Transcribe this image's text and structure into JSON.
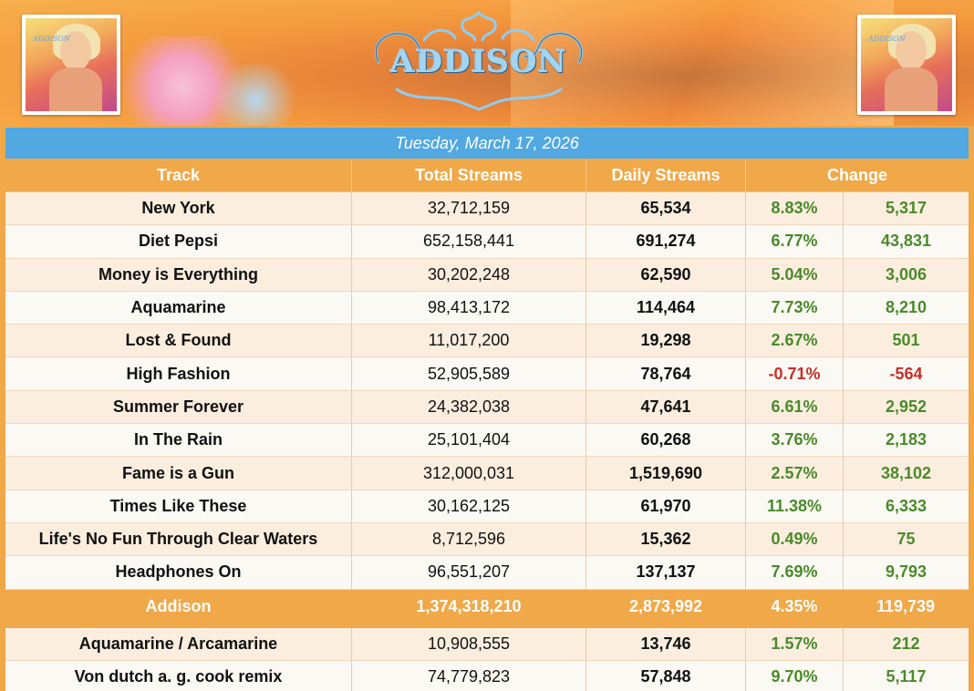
{
  "header": {
    "logo_text": "ADDISON",
    "cover_label": "ADDISON",
    "date": "Tuesday, March 17, 2026"
  },
  "table": {
    "columns": [
      "Track",
      "Total Streams",
      "Daily Streams",
      "Change"
    ],
    "rows": [
      {
        "track": "New York",
        "total": "32,712,159",
        "daily": "65,534",
        "pct": "8.83%",
        "change": "5,317"
      },
      {
        "track": "Diet Pepsi",
        "total": "652,158,441",
        "daily": "691,274",
        "pct": "6.77%",
        "change": "43,831"
      },
      {
        "track": "Money is Everything",
        "total": "30,202,248",
        "daily": "62,590",
        "pct": "5.04%",
        "change": "3,006"
      },
      {
        "track": "Aquamarine",
        "total": "98,413,172",
        "daily": "114,464",
        "pct": "7.73%",
        "change": "8,210"
      },
      {
        "track": "Lost & Found",
        "total": "11,017,200",
        "daily": "19,298",
        "pct": "2.67%",
        "change": "501"
      },
      {
        "track": "High Fashion",
        "total": "52,905,589",
        "daily": "78,764",
        "pct": "-0.71%",
        "change": "-564"
      },
      {
        "track": "Summer Forever",
        "total": "24,382,038",
        "daily": "47,641",
        "pct": "6.61%",
        "change": "2,952"
      },
      {
        "track": "In The Rain",
        "total": "25,101,404",
        "daily": "60,268",
        "pct": "3.76%",
        "change": "2,183"
      },
      {
        "track": "Fame is a Gun",
        "total": "312,000,031",
        "daily": "1,519,690",
        "pct": "2.57%",
        "change": "38,102"
      },
      {
        "track": "Times Like These",
        "total": "30,162,125",
        "daily": "61,970",
        "pct": "11.38%",
        "change": "6,333"
      },
      {
        "track": "Life's No Fun Through Clear Waters",
        "total": "8,712,596",
        "daily": "15,362",
        "pct": "0.49%",
        "change": "75"
      },
      {
        "track": "Headphones On",
        "total": "96,551,207",
        "daily": "137,137",
        "pct": "7.69%",
        "change": "9,793"
      }
    ],
    "total_row": {
      "track": "Addison",
      "total": "1,374,318,210",
      "daily": "2,873,992",
      "pct": "4.35%",
      "change": "119,739"
    },
    "extra_rows": [
      {
        "track": "Aquamarine / Arcamarine",
        "total": "10,908,555",
        "daily": "13,746",
        "pct": "1.57%",
        "change": "212"
      },
      {
        "track": "Von dutch a. g. cook remix",
        "total": "74,779,823",
        "daily": "57,848",
        "pct": "9.70%",
        "change": "5,117"
      }
    ]
  },
  "colors": {
    "accent_orange": "#f0a848",
    "date_blue": "#52a8e0",
    "positive_green": "#4a8a2a",
    "negative_red": "#c0302a"
  }
}
